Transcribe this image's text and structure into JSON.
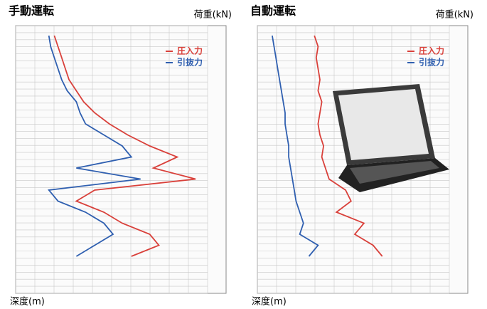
{
  "chart_data": [
    {
      "type": "line",
      "title": "手動運転",
      "xlabel": "深度(m)",
      "ylabel": "荷重(kN)",
      "x": [
        0,
        5,
        10,
        15,
        20,
        25,
        30,
        35,
        40,
        45,
        50,
        55,
        60,
        65,
        70,
        75,
        80,
        85,
        90,
        95,
        100
      ],
      "xlim": [
        0,
        100
      ],
      "ylim": [
        0,
        100
      ],
      "series": [
        {
          "name": "圧入力",
          "color": "#d9403a",
          "values": [
            18,
            20,
            22,
            24,
            26,
            30,
            34,
            40,
            48,
            58,
            70,
            85,
            72,
            95,
            40,
            30,
            45,
            55,
            70,
            75,
            60
          ]
        },
        {
          "name": "引抜力",
          "color": "#2f5fb0",
          "values": [
            15,
            16,
            18,
            20,
            22,
            25,
            30,
            32,
            35,
            45,
            55,
            60,
            30,
            65,
            15,
            20,
            35,
            45,
            50,
            40,
            30
          ]
        }
      ]
    },
    {
      "type": "line",
      "title": "自動運転",
      "xlabel": "深度(m)",
      "ylabel": "荷重(kN)",
      "x": [
        0,
        5,
        10,
        15,
        20,
        25,
        30,
        35,
        40,
        45,
        50,
        55,
        60,
        65,
        70,
        75,
        80,
        85,
        90,
        95,
        100
      ],
      "xlim": [
        0,
        100
      ],
      "ylim": [
        0,
        100
      ],
      "series": [
        {
          "name": "圧入力",
          "color": "#d9403a",
          "values": [
            28,
            30,
            29,
            30,
            31,
            30,
            32,
            31,
            30,
            31,
            33,
            32,
            34,
            36,
            45,
            48,
            40,
            55,
            50,
            60,
            65
          ]
        },
        {
          "name": "引抜力",
          "color": "#2f5fb0",
          "values": [
            5,
            6,
            7,
            8,
            9,
            10,
            11,
            12,
            12,
            13,
            14,
            14,
            15,
            16,
            17,
            18,
            20,
            22,
            20,
            30,
            25
          ]
        }
      ]
    }
  ]
}
